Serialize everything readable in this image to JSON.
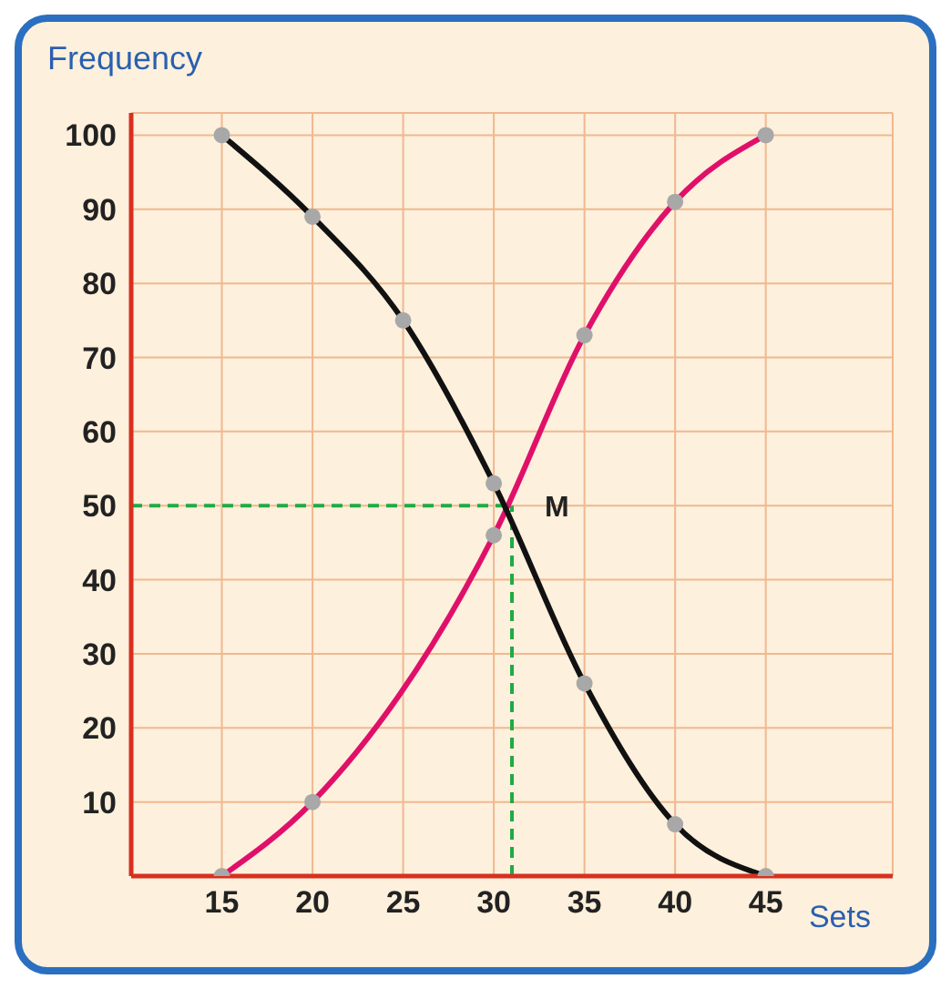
{
  "chart_data": {
    "type": "line",
    "xlabel": "Sets",
    "ylabel": "Frequency",
    "xlim": [
      10,
      52
    ],
    "ylim": [
      0,
      103
    ],
    "xticks": [
      15,
      20,
      25,
      30,
      35,
      40,
      45
    ],
    "yticks": [
      10,
      20,
      30,
      40,
      50,
      60,
      70,
      80,
      90,
      100
    ],
    "grid": true,
    "marker": "circle",
    "line_style": "solid",
    "legend": false,
    "series": [
      {
        "color": "#e0106a",
        "x": [
          15,
          20,
          30,
          35,
          40,
          45
        ],
        "values": [
          0,
          10,
          46,
          73,
          91,
          100
        ]
      },
      {
        "color": "#111111",
        "x": [
          15,
          20,
          25,
          30,
          35,
          40,
          45
        ],
        "values": [
          100,
          89,
          75,
          53,
          26,
          7,
          0
        ]
      }
    ],
    "ref_lines": [
      {
        "axis": "y",
        "value": 50,
        "color": "#22aa44",
        "line_style": "dashed"
      },
      {
        "axis": "x",
        "value": 31,
        "color": "#22aa44",
        "line_style": "dashed"
      }
    ],
    "annotations": [
      {
        "text": "M",
        "x": 31,
        "y": 50
      }
    ]
  }
}
